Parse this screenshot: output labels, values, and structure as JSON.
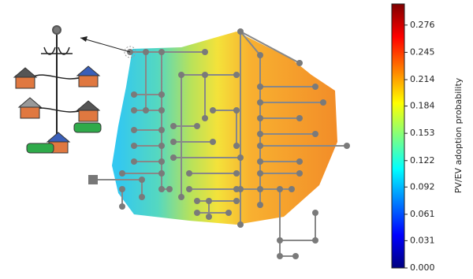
{
  "chart_data": {
    "type": "heatmap",
    "colormap": "jet",
    "ylabel": "PV/EV adoption probability",
    "ylim": [
      0,
      0.3
    ],
    "yticks": [
      {
        "value": 0,
        "label": "0.000"
      },
      0.031,
      0.061,
      0.092,
      0.122,
      0.153,
      0.184,
      0.214,
      0.245,
      0.276
    ]
  }
}
